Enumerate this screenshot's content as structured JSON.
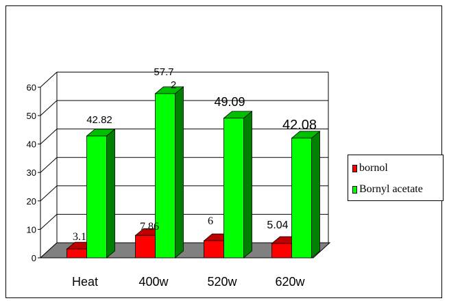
{
  "chart_data": {
    "type": "bar",
    "categories": [
      "Heat",
      "400w",
      "520w",
      "620w"
    ],
    "series": [
      {
        "name": "bornol",
        "color": "#ff0000",
        "values": [
          3.1,
          7.86,
          6,
          5.04
        ]
      },
      {
        "name": "Bornyl acetate",
        "color": "#00ff00",
        "values": [
          42.82,
          57.72,
          49.09,
          42.08
        ]
      }
    ],
    "data_labels": [
      [
        "3.1",
        "42.82"
      ],
      [
        "7.86",
        "57.7\n2"
      ],
      [
        "6",
        "49.09"
      ],
      [
        "5.04",
        "42.08"
      ]
    ],
    "yticks": [
      "0",
      "10",
      "20",
      "30",
      "40",
      "50",
      "60"
    ],
    "ylim": [
      0,
      60
    ],
    "grid": true,
    "legend_position": "right",
    "three_d": true,
    "floor_color": "#808080"
  }
}
